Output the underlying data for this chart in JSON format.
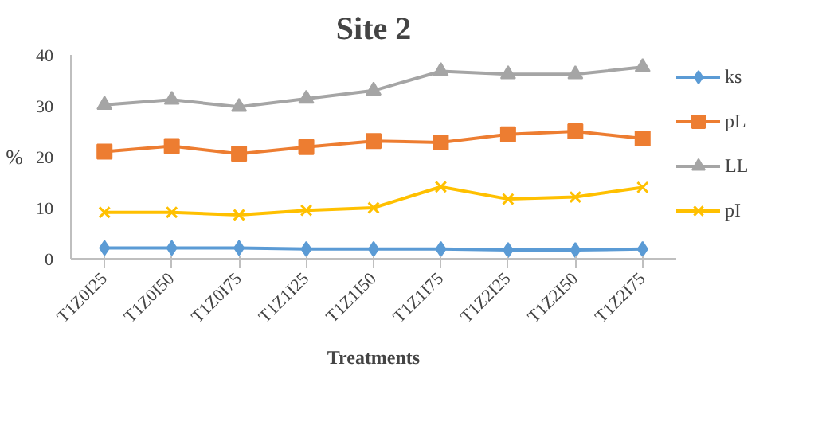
{
  "chart_data": {
    "type": "line",
    "title": "Site 2",
    "xlabel": "Treatments",
    "ylabel": "%",
    "categories": [
      "T1Z0I25",
      "T1Z0I50",
      "T1Z0I75",
      "T1Z1I25",
      "T1Z1I50",
      "T1Z1I75",
      "T1Z2I25",
      "T1Z2I50",
      "T1Z2I75"
    ],
    "series": [
      {
        "name": "ks",
        "color": "#5b9bd5",
        "marker": "diamond",
        "values": [
          2.1,
          2.1,
          2.1,
          1.9,
          1.9,
          1.9,
          1.7,
          1.7,
          1.9
        ]
      },
      {
        "name": "pL",
        "color": "#ed7d31",
        "marker": "square",
        "values": [
          21,
          22.1,
          20.6,
          21.9,
          23.1,
          22.8,
          24.4,
          25,
          23.6
        ]
      },
      {
        "name": "LL",
        "color": "#a5a5a5",
        "marker": "triangle",
        "values": [
          30.2,
          31.2,
          29.8,
          31.4,
          33,
          36.8,
          36.2,
          36.2,
          37.6
        ]
      },
      {
        "name": "pI",
        "color": "#ffc000",
        "marker": "cross",
        "values": [
          9.1,
          9.1,
          8.6,
          9.5,
          10,
          14.1,
          11.7,
          12.1,
          14
        ]
      }
    ],
    "ylim": [
      0,
      40
    ],
    "yticks": [
      0,
      10,
      20,
      30,
      40
    ],
    "grid": false,
    "legend": "right"
  }
}
